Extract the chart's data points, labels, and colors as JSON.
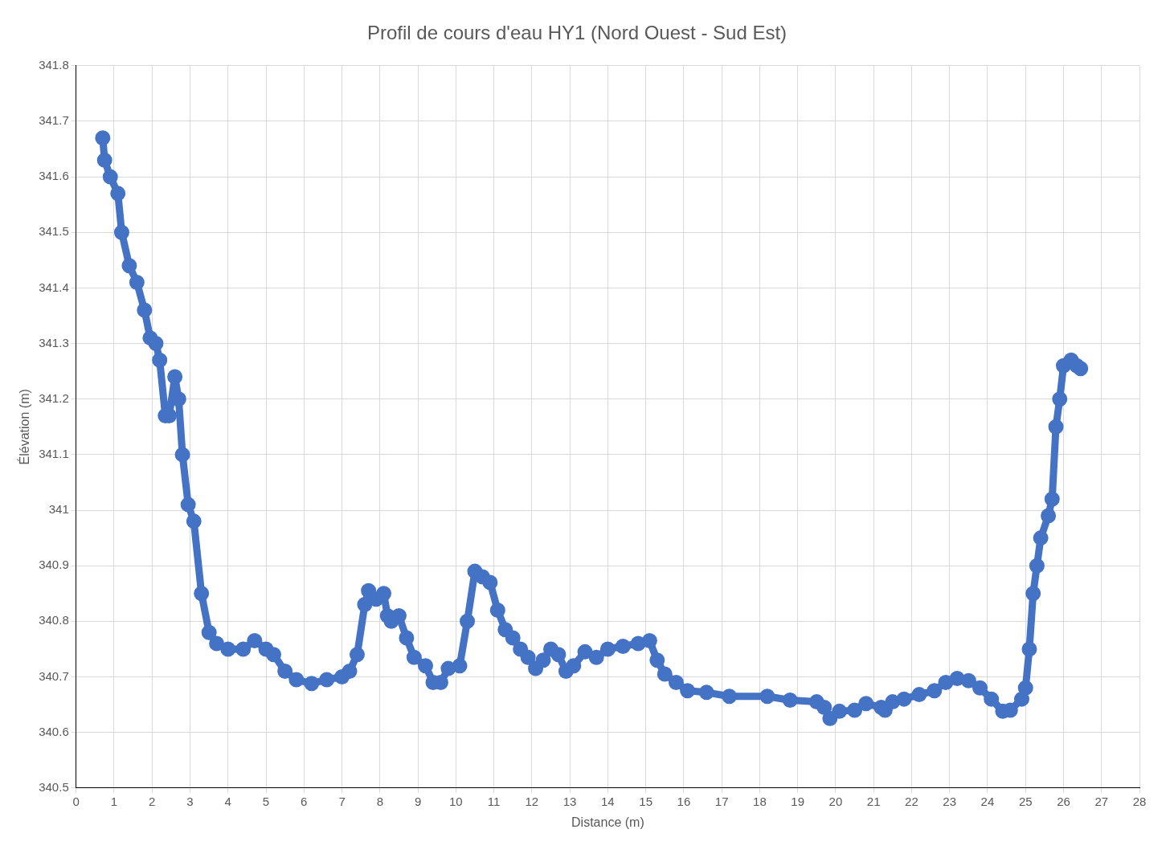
{
  "chart_data": {
    "type": "line",
    "title": "Profil de cours d'eau HY1 (Nord Ouest - Sud Est)",
    "xlabel": "Distance (m)",
    "ylabel": "Élévation (m)",
    "xlim": [
      0,
      28
    ],
    "xticks": [
      0,
      1,
      2,
      3,
      4,
      5,
      6,
      7,
      8,
      9,
      10,
      11,
      12,
      13,
      14,
      15,
      16,
      17,
      18,
      19,
      20,
      21,
      22,
      23,
      24,
      25,
      26,
      27,
      28
    ],
    "ylim": [
      340.5,
      341.8
    ],
    "yticks": [
      340.5,
      340.6,
      340.7,
      340.8,
      340.9,
      341,
      341.1,
      341.2,
      341.3,
      341.4,
      341.5,
      341.6,
      341.7,
      341.8
    ],
    "grid": true,
    "legend": false,
    "marker": "circle",
    "line_style": "solid",
    "series": [
      {
        "color": "#4472c4",
        "x": [
          0.7,
          0.75,
          0.9,
          1.1,
          1.2,
          1.4,
          1.6,
          1.8,
          1.95,
          2.1,
          2.2,
          2.35,
          2.45,
          2.6,
          2.7,
          2.8,
          2.95,
          3.1,
          3.3,
          3.5,
          3.7,
          4.0,
          4.4,
          4.7,
          5.0,
          5.2,
          5.5,
          5.8,
          6.2,
          6.6,
          7.0,
          7.2,
          7.4,
          7.6,
          7.7,
          7.9,
          8.1,
          8.2,
          8.3,
          8.5,
          8.7,
          8.9,
          9.2,
          9.4,
          9.6,
          9.8,
          10.1,
          10.3,
          10.5,
          10.7,
          10.9,
          11.1,
          11.3,
          11.5,
          11.7,
          11.9,
          12.1,
          12.3,
          12.5,
          12.7,
          12.9,
          13.1,
          13.4,
          13.7,
          14.0,
          14.4,
          14.8,
          15.1,
          15.3,
          15.5,
          15.8,
          16.1,
          16.6,
          17.2,
          18.2,
          18.8,
          19.5,
          19.7,
          19.85,
          20.1,
          20.5,
          20.8,
          21.2,
          21.3,
          21.5,
          21.8,
          22.2,
          22.6,
          22.9,
          23.2,
          23.5,
          23.8,
          24.1,
          24.4,
          24.6,
          24.9,
          25.0,
          25.1,
          25.2,
          25.3,
          25.4,
          25.6,
          25.7,
          25.8,
          25.9,
          26.0,
          26.2,
          26.35,
          26.45
        ],
        "values": [
          341.67,
          341.63,
          341.6,
          341.57,
          341.5,
          341.44,
          341.41,
          341.36,
          341.31,
          341.3,
          341.27,
          341.17,
          341.17,
          341.24,
          341.2,
          341.1,
          341.01,
          340.98,
          340.85,
          340.78,
          340.76,
          340.75,
          340.75,
          340.765,
          340.75,
          340.74,
          340.71,
          340.695,
          340.688,
          340.695,
          340.7,
          340.71,
          340.74,
          340.83,
          340.855,
          340.84,
          340.85,
          340.81,
          340.8,
          340.81,
          340.77,
          340.735,
          340.72,
          340.69,
          340.69,
          340.715,
          340.72,
          340.8,
          340.89,
          340.88,
          340.87,
          340.82,
          340.785,
          340.77,
          340.75,
          340.735,
          340.715,
          340.73,
          340.75,
          340.74,
          340.71,
          340.72,
          340.745,
          340.735,
          340.75,
          340.755,
          340.76,
          340.765,
          340.73,
          340.705,
          340.69,
          340.675,
          340.672,
          340.665,
          340.665,
          340.658,
          340.655,
          340.645,
          340.625,
          340.638,
          340.64,
          340.652,
          340.645,
          340.64,
          340.655,
          340.66,
          340.668,
          340.675,
          340.69,
          340.697,
          340.693,
          340.68,
          340.66,
          340.638,
          340.64,
          340.66,
          340.68,
          340.75,
          340.85,
          340.9,
          340.95,
          340.99,
          341.02,
          341.15,
          341.2,
          341.26,
          341.27,
          341.26,
          341.255
        ]
      }
    ]
  }
}
